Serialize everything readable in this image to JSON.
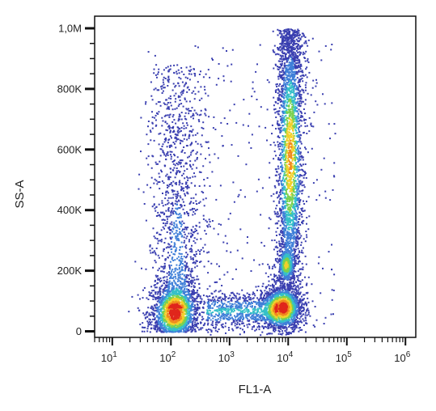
{
  "chart_data": {
    "type": "scatter",
    "subtype": "flow-cytometry density dot plot",
    "title": "",
    "xlabel": "FL1-A",
    "ylabel": "SS-A",
    "x_scale": "log",
    "y_scale": "linear",
    "xlim": [
      5,
      1500000
    ],
    "ylim": [
      -20000,
      1040000
    ],
    "x_ticks": [
      {
        "value": 10,
        "base": "10",
        "exp": "1"
      },
      {
        "value": 100,
        "base": "10",
        "exp": "2"
      },
      {
        "value": 1000,
        "base": "10",
        "exp": "3"
      },
      {
        "value": 10000,
        "base": "10",
        "exp": "4"
      },
      {
        "value": 100000,
        "base": "10",
        "exp": "5"
      },
      {
        "value": 1000000,
        "base": "10",
        "exp": "6"
      }
    ],
    "y_ticks": [
      {
        "value": 0,
        "label": "0"
      },
      {
        "value": 200000,
        "label": "200K"
      },
      {
        "value": 400000,
        "label": "400K"
      },
      {
        "value": 600000,
        "label": "600K"
      },
      {
        "value": 800000,
        "label": "800K"
      },
      {
        "value": 1000000,
        "label": "1,0M"
      }
    ],
    "grid": false,
    "legend": "none",
    "colormap": [
      "#3a3fb0",
      "#3f7fd8",
      "#35c0c8",
      "#7bd14f",
      "#f2d02a",
      "#f08a1e",
      "#e0261c"
    ],
    "populations": [
      {
        "id": "low-fl1-cluster",
        "x_log10_center": 2.05,
        "x_log10_sd": 0.16,
        "y_center": 60000,
        "y_sd": 35000,
        "peak_density": 1.0
      },
      {
        "id": "low-fl1-vertical-tail",
        "x_log10_center": 2.1,
        "x_log10_sd": 0.15,
        "y_range": [
          80000,
          880000
        ],
        "peak_density": 0.25
      },
      {
        "id": "high-fl1-low-ss-cluster",
        "x_log10_center": 3.9,
        "x_log10_sd": 0.13,
        "y_center": 80000,
        "y_sd": 30000,
        "peak_density": 1.0
      },
      {
        "id": "low-ss-bridge",
        "x_log10_range": [
          2.6,
          3.8
        ],
        "y_center": 70000,
        "y_sd": 25000,
        "peak_density": 0.3
      },
      {
        "id": "high-fl1-high-ss-column",
        "x_log10_center": 4.02,
        "x_log10_sd": 0.09,
        "y_range": [
          150000,
          1000000
        ],
        "y_mode": 580000,
        "peak_density": 0.75
      },
      {
        "id": "high-fl1-mid-ss-knot",
        "x_log10_center": 3.95,
        "x_log10_sd": 0.06,
        "y_center": 220000,
        "y_sd": 25000,
        "peak_density": 0.55
      }
    ]
  }
}
